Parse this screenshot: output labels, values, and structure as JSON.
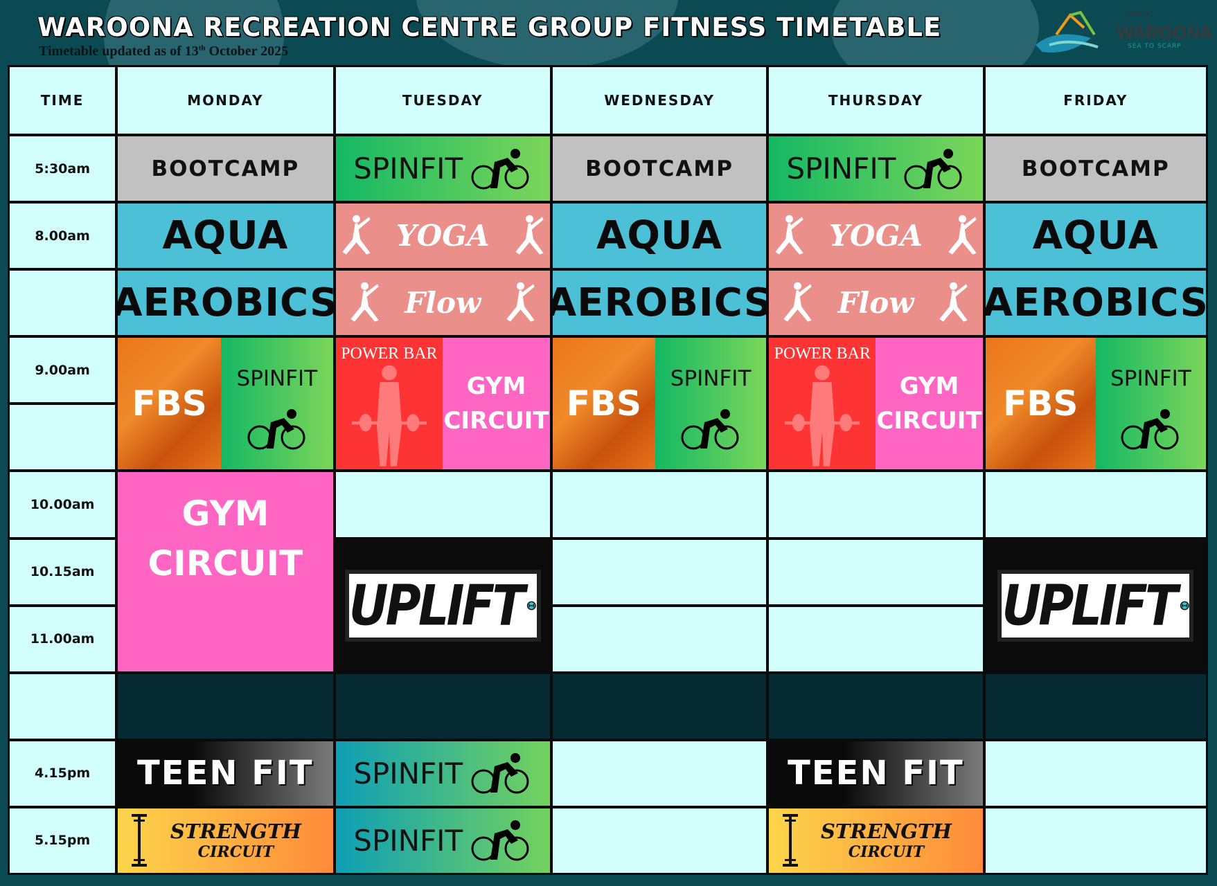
{
  "header": {
    "title": "WAROONA RECREATION CENTRE GROUP FITNESS TIMETABLE",
    "subtitle_pre": "Timetable updated as of 13",
    "subtitle_sup": "th",
    "subtitle_post": " October 2025",
    "logo": {
      "shire": "SHIRE OF",
      "name": "WAROONA",
      "tagline": "SEA TO SCARP"
    }
  },
  "columns": [
    "TIME",
    "MONDAY",
    "TUESDAY",
    "WEDNESDAY",
    "THURSDAY",
    "FRIDAY"
  ],
  "times": [
    "5:30am",
    "8.00am",
    "",
    "9.00am",
    "",
    "10.00am",
    "10.15am",
    "11.00am",
    "",
    "4.15pm",
    "5.15pm"
  ],
  "classes": {
    "bootcamp": "BOOTCAMP",
    "spinfit": "SPINFIT",
    "aqua": "AQUA",
    "aerobics": "AEROBICS",
    "yoga": "YOGA",
    "flow": "Flow",
    "fbs": "FBS",
    "power_bar": "POWER BAR",
    "gym": "GYM",
    "circuit": "CIRCUIT",
    "uplift": "UPLIFT",
    "teen_fit": "TEEN FIT",
    "strength": "STRENGTH",
    "strength_circuit": "CIRCUIT"
  },
  "colors": {
    "background": "#0b4a53",
    "cell": "#d2fefb",
    "bootcamp": "#c1c1c1",
    "aqua": "#4cc0d7",
    "yoga": "#eb8f8a",
    "power_bar": "#fe3434",
    "gym_circuit": "#ff66c4",
    "evening_break": "#062a31"
  },
  "icons": [
    "bike-icon",
    "yoga-pose-icon",
    "weightlifter-icon",
    "dumbbell-icon",
    "barbell-icon"
  ]
}
